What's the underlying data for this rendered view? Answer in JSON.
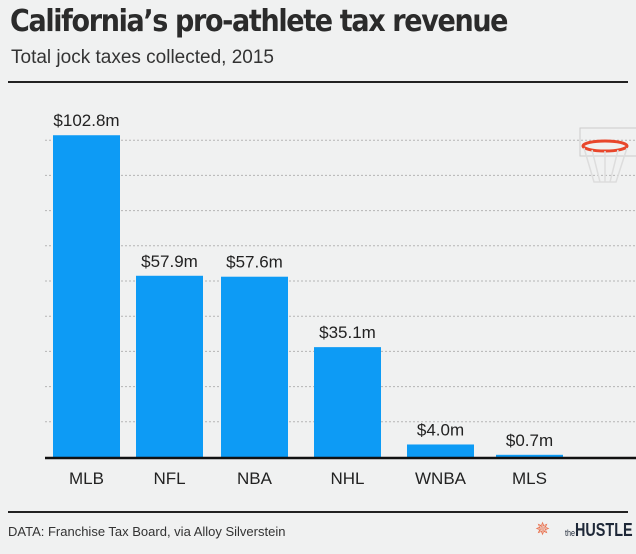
{
  "chart_data": {
    "type": "bar",
    "title": "California’s pro-athlete tax revenue",
    "subtitle": "Total jock taxes collected, 2015",
    "categories": [
      "MLB",
      "NFL",
      "NBA",
      "NHL",
      "WNBA",
      "MLS"
    ],
    "values": [
      102.8,
      57.9,
      57.6,
      35.1,
      4.0,
      0.7
    ],
    "data_labels": [
      "$102.8m",
      "$57.9m",
      "$57.6m",
      "$35.1m",
      "$4.0m",
      "$0.7m"
    ],
    "unit": "million USD",
    "xlabel": "",
    "ylabel": "",
    "ylim": [
      0,
      110
    ],
    "grid": true,
    "bar_color": "#0d9bf5",
    "source": "DATA: Franchise Tax Board, via Alloy Silverstein"
  },
  "branding": {
    "logo_prefix": "the",
    "logo_name": "HUSTLE",
    "accent": "#e8704d"
  }
}
